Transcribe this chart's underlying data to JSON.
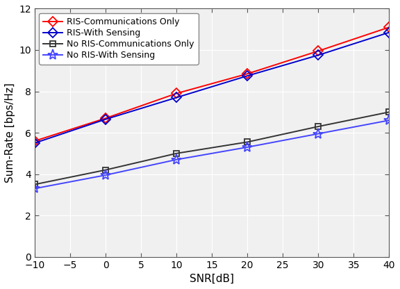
{
  "snr": [
    -10,
    0,
    10,
    20,
    30,
    40
  ],
  "ris_comm_only": [
    5.6,
    6.7,
    7.9,
    8.85,
    9.95,
    11.1
  ],
  "ris_with_sensing": [
    5.5,
    6.65,
    7.7,
    8.75,
    9.75,
    10.85
  ],
  "no_ris_comm_only": [
    3.5,
    4.2,
    5.0,
    5.55,
    6.3,
    7.0
  ],
  "no_ris_with_sensing": [
    3.3,
    3.95,
    4.7,
    5.3,
    5.95,
    6.6
  ],
  "xlabel": "SNR[dB]",
  "ylabel": "Sum-Rate [bps/Hz]",
  "ylim": [
    0,
    12
  ],
  "xlim": [
    -10,
    40
  ],
  "xticks": [
    -10,
    -5,
    0,
    5,
    10,
    15,
    20,
    25,
    30,
    35,
    40
  ],
  "yticks": [
    0,
    2,
    4,
    6,
    8,
    10,
    12
  ],
  "legend_labels": [
    "RIS-Communications Only",
    "RIS-With Sensing",
    "No RIS-Communications Only",
    "No RIS-With Sensing"
  ],
  "colors": [
    "#ff0000",
    "#0000cc",
    "#333333",
    "#4444ff"
  ],
  "markers": [
    "D",
    "D",
    "s",
    "*"
  ],
  "marker_sizes": [
    7,
    7,
    6,
    11
  ],
  "linewidths": [
    1.4,
    1.4,
    1.4,
    1.4
  ],
  "plot_bg_color": "#f0f0f0",
  "fig_bg_color": "#ffffff",
  "grid_color": "#ffffff",
  "title_fontsize": 10,
  "axis_fontsize": 11,
  "tick_fontsize": 10,
  "legend_fontsize": 9
}
